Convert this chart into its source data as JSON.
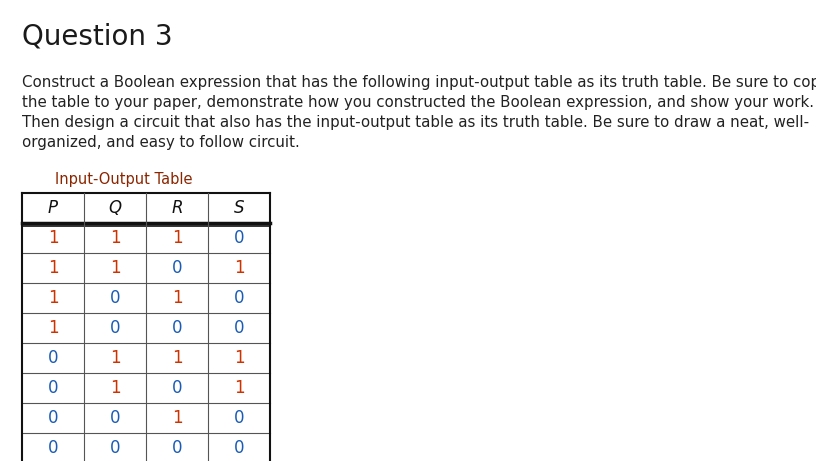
{
  "title": "Question 3",
  "title_fontsize": 20,
  "title_color": "#1a1a1a",
  "body_text": "Construct a Boolean expression that has the following input-output table as its truth table. Be sure to copy\nthe table to your paper, demonstrate how you constructed the Boolean expression, and show your work.\nThen design a circuit that also has the input-output table as its truth table. Be sure to draw a neat, well-\norganized, and easy to follow circuit.",
  "body_fontsize": 10.8,
  "body_color": "#222222",
  "table_title": "Input-Output Table",
  "table_title_color": "#8B2500",
  "table_title_fontsize": 10.5,
  "table_headers": [
    "P",
    "Q",
    "R",
    "S"
  ],
  "table_header_color": "#111111",
  "table_header_fontsize": 12,
  "table_data": [
    [
      1,
      1,
      1,
      0
    ],
    [
      1,
      1,
      0,
      1
    ],
    [
      1,
      0,
      1,
      0
    ],
    [
      1,
      0,
      0,
      0
    ],
    [
      0,
      1,
      1,
      1
    ],
    [
      0,
      1,
      0,
      1
    ],
    [
      0,
      0,
      1,
      0
    ],
    [
      0,
      0,
      0,
      0
    ]
  ],
  "table_data_color_0": "#1a5cb5",
  "table_data_color_1": "#cc3300",
  "table_data_fontsize": 12,
  "background_color": "#ffffff",
  "table_line_color": "#555555",
  "table_line_color_thick": "#111111"
}
